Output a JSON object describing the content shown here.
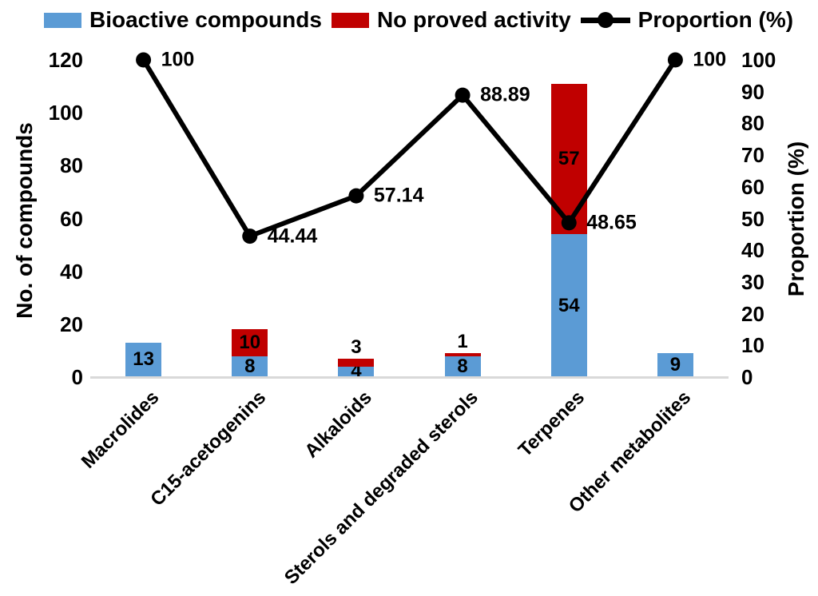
{
  "legend": {
    "items": [
      {
        "label": "Bioactive compounds",
        "color": "#5B9BD5",
        "marker": "box"
      },
      {
        "label": "No proved activity",
        "color": "#C00000",
        "marker": "box"
      },
      {
        "label": "Proportion (%)",
        "color": "#000000",
        "marker": "line-dot"
      }
    ]
  },
  "chart_data": {
    "type": "bar",
    "subtype": "stacked-bar-with-line",
    "categories": [
      "Macrolides",
      "C15-acetogenins",
      "Alkaloids",
      "Sterols and degraded sterols",
      "Terpenes",
      "Other metabolites"
    ],
    "series": [
      {
        "name": "Bioactive compounds",
        "type": "bar",
        "color": "#5B9BD5",
        "values": [
          13,
          8,
          4,
          8,
          54,
          9
        ]
      },
      {
        "name": "No proved activity",
        "type": "bar",
        "color": "#C00000",
        "values": [
          0,
          10,
          3,
          1,
          57,
          0
        ]
      },
      {
        "name": "Proportion (%)",
        "type": "line",
        "axis": "right",
        "color": "#000000",
        "values": [
          100,
          44.44,
          57.14,
          88.89,
          48.65,
          100
        ]
      }
    ],
    "line_point_labels": [
      "100",
      "44.44",
      "57.14",
      "88.89",
      "48.65",
      "100"
    ],
    "bar_label_color": "#000000",
    "ylabel_left": "No. of compounds",
    "ylabel_right": "Proportion (%)",
    "yticks_left": [
      0,
      20,
      40,
      60,
      80,
      100,
      120
    ],
    "yticks_right": [
      0,
      10,
      20,
      30,
      40,
      50,
      60,
      70,
      80,
      90,
      100
    ],
    "ylim_left": [
      0,
      120
    ],
    "ylim_right": [
      0,
      100
    ],
    "grid": false,
    "legend_position": "top",
    "axis_line_color": "#D9D9D9"
  }
}
